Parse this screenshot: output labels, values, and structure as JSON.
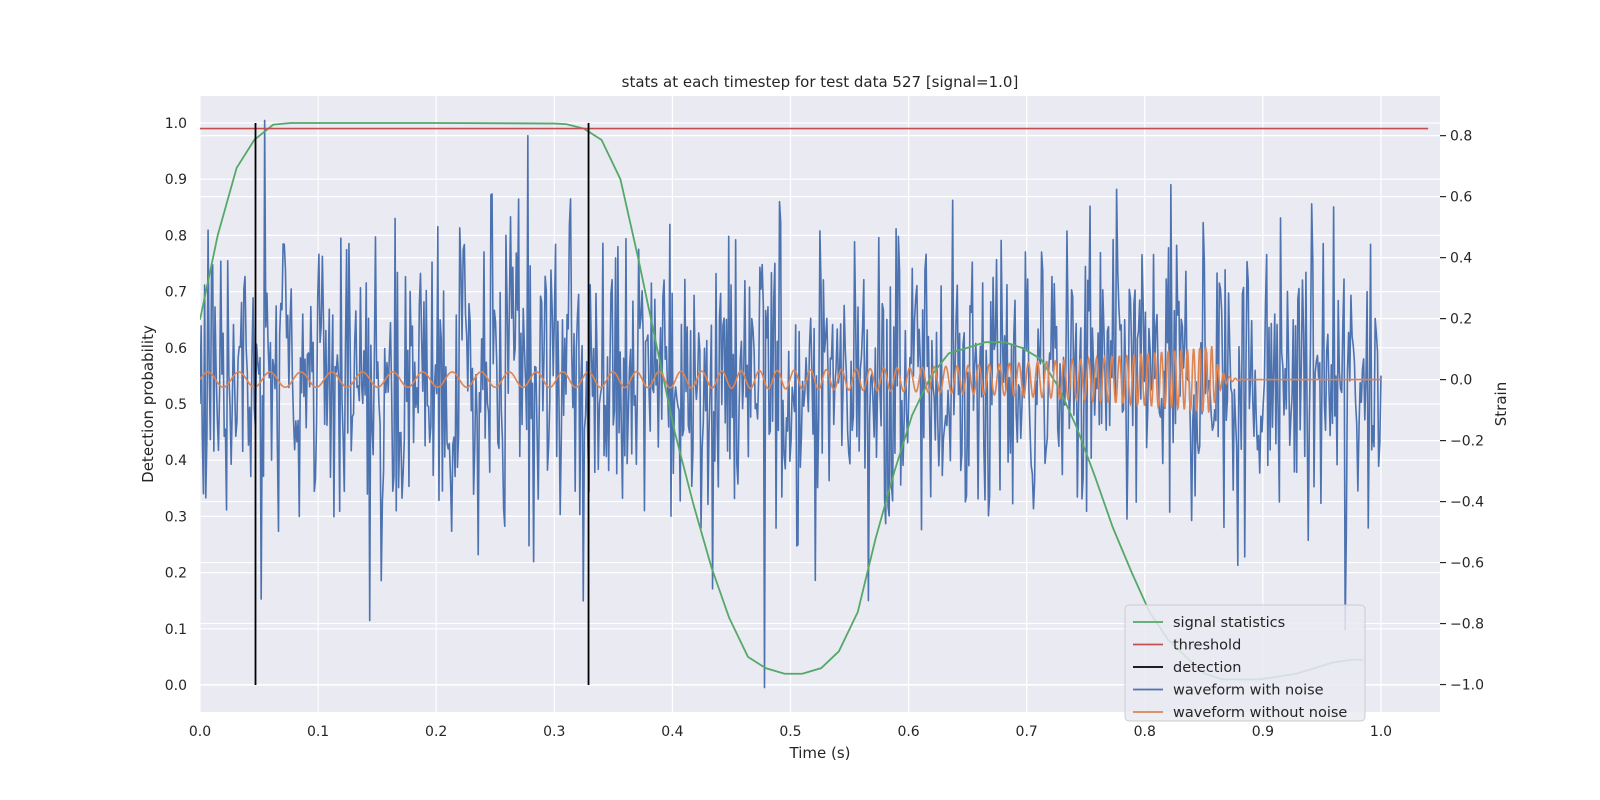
{
  "chart_data": {
    "type": "line",
    "title": "stats at each timestep for test data 527 [signal=1.0]",
    "xlabel": "Time (s)",
    "ylabel_left": "Detection probability",
    "ylabel_right": "Strain",
    "xlim": [
      0.0,
      1.05
    ],
    "ylim_left": [
      -0.048,
      1.048
    ],
    "ylim_right": [
      -1.09,
      0.93
    ],
    "x_ticks": [
      "0.0",
      "0.1",
      "0.2",
      "0.3",
      "0.4",
      "0.5",
      "0.6",
      "0.7",
      "0.8",
      "0.9",
      "1.0"
    ],
    "x_tick_values": [
      0.0,
      0.1,
      0.2,
      0.3,
      0.4,
      0.5,
      0.6,
      0.7,
      0.8,
      0.9,
      1.0
    ],
    "y_left_ticks": [
      "0.0",
      "0.1",
      "0.2",
      "0.3",
      "0.4",
      "0.5",
      "0.6",
      "0.7",
      "0.8",
      "0.9",
      "1.0"
    ],
    "y_left_tick_values": [
      0.0,
      0.1,
      0.2,
      0.3,
      0.4,
      0.5,
      0.6,
      0.7,
      0.8,
      0.9,
      1.0
    ],
    "y_right_ticks": [
      "−1.0",
      "−0.8",
      "−0.6",
      "−0.4",
      "−0.2",
      "0.0",
      "0.2",
      "0.4",
      "0.6",
      "0.8"
    ],
    "y_right_tick_values": [
      -1.0,
      -0.8,
      -0.6,
      -0.4,
      -0.2,
      0.0,
      0.2,
      0.4,
      0.6,
      0.8
    ],
    "grid": true,
    "legend_placement": "lower-right",
    "legend": [
      "signal statistics",
      "threshold",
      "detection",
      "waveform with noise",
      "waveform without noise"
    ],
    "colors": {
      "signal_statistics": "#55a868",
      "threshold": "#c44e52",
      "detection": "#000000",
      "waveform_with_noise": "#4c72b0",
      "waveform_without_noise": "#dd8452",
      "axes_background": "#eaeaf2",
      "grid": "#ffffff"
    },
    "series": [
      {
        "name": "signal statistics",
        "axis": "left",
        "x": [
          0.0,
          0.015,
          0.031,
          0.046,
          0.062,
          0.077,
          0.093,
          0.108,
          0.2,
          0.3,
          0.31,
          0.325,
          0.34,
          0.356,
          0.371,
          0.387,
          0.402,
          0.418,
          0.433,
          0.448,
          0.464,
          0.479,
          0.495,
          0.51,
          0.526,
          0.541,
          0.557,
          0.572,
          0.588,
          0.603,
          0.619,
          0.634,
          0.65,
          0.665,
          0.681,
          0.696,
          0.712,
          0.727,
          0.742,
          0.758,
          0.773,
          0.789,
          0.804,
          0.82,
          0.835,
          0.851,
          0.866,
          0.882,
          0.897,
          0.913,
          0.928,
          0.944,
          0.959,
          0.975,
          0.985
        ],
        "y": [
          0.65,
          0.8,
          0.92,
          0.97,
          0.997,
          1.0,
          1.0,
          1.0,
          1.0,
          0.999,
          0.998,
          0.99,
          0.97,
          0.9,
          0.76,
          0.6,
          0.45,
          0.32,
          0.21,
          0.12,
          0.05,
          0.03,
          0.02,
          0.02,
          0.03,
          0.06,
          0.13,
          0.26,
          0.38,
          0.48,
          0.55,
          0.59,
          0.6,
          0.61,
          0.61,
          0.6,
          0.58,
          0.53,
          0.46,
          0.37,
          0.28,
          0.2,
          0.13,
          0.08,
          0.05,
          0.02,
          0.01,
          0.01,
          0.01,
          0.015,
          0.02,
          0.03,
          0.04,
          0.045,
          0.045
        ]
      },
      {
        "name": "threshold",
        "axis": "left",
        "x": [
          0.0,
          1.04
        ],
        "y": [
          0.99,
          0.99
        ]
      },
      {
        "name": "detection",
        "axis": "left",
        "x": [
          0.047,
          0.329
        ],
        "y_range": [
          0.0,
          1.0
        ]
      },
      {
        "name": "waveform with noise",
        "axis": "right",
        "x_range": [
          0.0,
          1.0
        ],
        "n_points": 1024,
        "amplitude_std": 0.25,
        "note_extremes": [
          [
            0.055,
            0.85
          ],
          [
            0.278,
            0.8
          ],
          [
            0.478,
            -1.01
          ],
          [
            0.97,
            -0.82
          ]
        ]
      },
      {
        "name": "waveform without noise",
        "axis": "right",
        "x_range": [
          0.0,
          1.0
        ],
        "chirp_end_time": 0.857,
        "amplitude_start": 0.025,
        "amplitude_peak": 0.11,
        "frequency_start_hz": 38,
        "frequency_end_hz": 200
      }
    ]
  }
}
